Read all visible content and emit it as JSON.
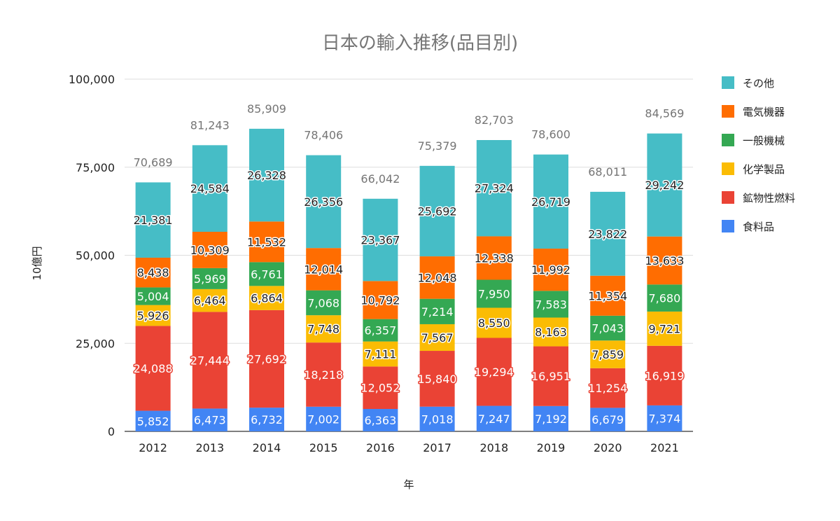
{
  "chart_data": {
    "type": "bar",
    "stacked": true,
    "title": "日本の輸入推移(品目別)",
    "xlabel": "年",
    "ylabel": "10億円",
    "ylim": [
      0,
      100000
    ],
    "yticks": [
      "0",
      "25,000",
      "50,000",
      "75,000",
      "100,000"
    ],
    "ytick_values": [
      0,
      25000,
      50000,
      75000,
      100000
    ],
    "grid": true,
    "legend_position": "right",
    "categories": [
      "2012",
      "2013",
      "2014",
      "2015",
      "2016",
      "2017",
      "2018",
      "2019",
      "2020",
      "2021"
    ],
    "series": [
      {
        "name": "食料品",
        "color": "#4285F4",
        "label_text_color": "#ffffff",
        "label_halo_color": "#4285F4",
        "values": [
          5852,
          6473,
          6732,
          7002,
          6363,
          7018,
          7247,
          7192,
          6679,
          7374
        ],
        "labels": [
          "5,852",
          "6,473",
          "6,732",
          "7,002",
          "6,363",
          "7,018",
          "7,247",
          "7,192",
          "6,679",
          "7,374"
        ]
      },
      {
        "name": "鉱物性燃料",
        "color": "#EA4335",
        "label_text_color": "#ffffff",
        "label_halo_color": "#EA4335",
        "values": [
          24088,
          27444,
          27692,
          18218,
          12052,
          15840,
          19294,
          16951,
          11254,
          16919
        ],
        "labels": [
          "24,088",
          "27,444",
          "27,692",
          "18,218",
          "12,052",
          "15,840",
          "19,294",
          "16,951",
          "11,254",
          "16,919"
        ]
      },
      {
        "name": "化学製品",
        "color": "#FBBC04",
        "label_text_color": "#222222",
        "label_halo_color": "#ffffff",
        "values": [
          5926,
          6464,
          6864,
          7748,
          7111,
          7567,
          8550,
          8163,
          7859,
          9721
        ],
        "labels": [
          "5,926",
          "6,464",
          "6,864",
          "7,748",
          "7,111",
          "7,567",
          "8,550",
          "8,163",
          "7,859",
          "9,721"
        ]
      },
      {
        "name": "一般機械",
        "color": "#34A853",
        "label_text_color": "#ffffff",
        "label_halo_color": "#34A853",
        "values": [
          5004,
          5969,
          6761,
          7068,
          6357,
          7214,
          7950,
          7583,
          7043,
          7680
        ],
        "labels": [
          "5,004",
          "5,969",
          "6,761",
          "7,068",
          "6,357",
          "7,214",
          "7,950",
          "7,583",
          "7,043",
          "7,680"
        ]
      },
      {
        "name": "電気機器",
        "color": "#FF6D01",
        "label_text_color": "#222222",
        "label_halo_color": "#ffffff",
        "values": [
          8438,
          10309,
          11532,
          12014,
          10792,
          12048,
          12338,
          11992,
          11354,
          13633
        ],
        "labels": [
          "8,438",
          "10,309",
          "11,532",
          "12,014",
          "10,792",
          "12,048",
          "12,338",
          "11,992",
          "11,354",
          "13,633"
        ]
      },
      {
        "name": "その他",
        "color": "#46BDC6",
        "label_text_color": "#222222",
        "label_halo_color": "#ffffff",
        "values": [
          21381,
          24584,
          26328,
          26356,
          23367,
          25692,
          27324,
          26719,
          23822,
          29242
        ],
        "labels": [
          "21,381",
          "24,584",
          "26,328",
          "26,356",
          "23,367",
          "25,692",
          "27,324",
          "26,719",
          "23,822",
          "29,242"
        ]
      }
    ],
    "totals": [
      70689,
      81243,
      85909,
      78406,
      66042,
      75379,
      82703,
      78600,
      68011,
      84569
    ],
    "total_labels": [
      "70,689",
      "81,243",
      "85,909",
      "78,406",
      "66,042",
      "75,379",
      "82,703",
      "78,600",
      "68,011",
      "84,569"
    ],
    "legend_order": [
      "その他",
      "電気機器",
      "一般機械",
      "化学製品",
      "鉱物性燃料",
      "食料品"
    ]
  }
}
